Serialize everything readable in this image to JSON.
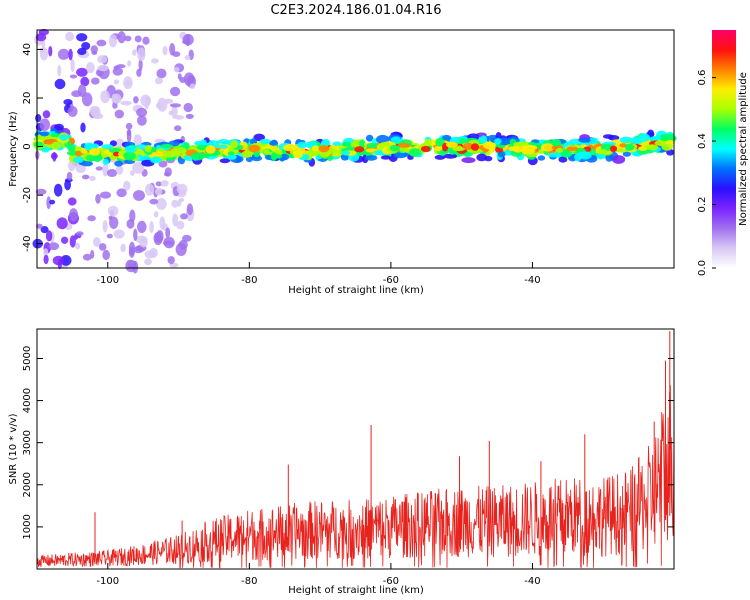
{
  "title": "C2E3.2024.186.01.04.R16",
  "colors": {
    "snr_line": "#e8231e",
    "colormap": [
      "#ffffff",
      "#d8c8f4",
      "#a070ee",
      "#7a24ff",
      "#2a10ff",
      "#0070ff",
      "#00ffff",
      "#00ff60",
      "#a8ff00",
      "#ffee00",
      "#ff8000",
      "#ff1010",
      "#ff0066"
    ]
  },
  "chart_data": [
    {
      "type": "heatmap",
      "xlabel": "Height of straight line (km)",
      "ylabel": "Frequency (Hz)",
      "xlim": [
        -110,
        -20
      ],
      "ylim": [
        -50,
        48
      ],
      "xticks": [
        -100,
        -80,
        -60,
        -40
      ],
      "yticks": [
        -40,
        -20,
        0,
        20,
        40
      ],
      "band_center_hz": [
        {
          "x": -105,
          "y": -3
        },
        {
          "x": -95,
          "y": -3
        },
        {
          "x": -80,
          "y": -1
        },
        {
          "x": -70,
          "y": -2
        },
        {
          "x": -60,
          "y": 0
        },
        {
          "x": -50,
          "y": 0
        },
        {
          "x": -40,
          "y": -1
        },
        {
          "x": -30,
          "y": -1
        },
        {
          "x": -21,
          "y": 2
        }
      ],
      "band_halfwidth_hz": 6,
      "colorbar": {
        "label": "Normalized spectral amplitude",
        "range": [
          0,
          0.75
        ],
        "ticks": [
          0.0,
          0.2,
          0.4,
          0.6
        ]
      }
    },
    {
      "type": "line",
      "xlabel": "Height of straight line (km)",
      "ylabel": "SNR (10 * v/v)",
      "xlim": [
        -110,
        -20
      ],
      "ylim": [
        0,
        5700
      ],
      "xticks": [
        -100,
        -80,
        -60,
        -40
      ],
      "yticks": [
        1000,
        2000,
        3000,
        4000,
        5000
      ],
      "envelope": [
        {
          "x": -110,
          "y": 300
        },
        {
          "x": -100,
          "y": 400
        },
        {
          "x": -95,
          "y": 550
        },
        {
          "x": -90,
          "y": 750
        },
        {
          "x": -85,
          "y": 1100
        },
        {
          "x": -80,
          "y": 1300
        },
        {
          "x": -75,
          "y": 1400
        },
        {
          "x": -70,
          "y": 1500
        },
        {
          "x": -65,
          "y": 1500
        },
        {
          "x": -60,
          "y": 1600
        },
        {
          "x": -55,
          "y": 1700
        },
        {
          "x": -50,
          "y": 1800
        },
        {
          "x": -45,
          "y": 1800
        },
        {
          "x": -40,
          "y": 1900
        },
        {
          "x": -35,
          "y": 2000
        },
        {
          "x": -30,
          "y": 2000
        },
        {
          "x": -26,
          "y": 2200
        },
        {
          "x": -23,
          "y": 2800
        },
        {
          "x": -21,
          "y": 4000
        },
        {
          "x": -20,
          "y": 4500
        }
      ],
      "spikes": [
        {
          "x": -101.8,
          "y": 1350
        },
        {
          "x": -89.5,
          "y": 1150
        },
        {
          "x": -74.5,
          "y": 2480
        },
        {
          "x": -62.8,
          "y": 3420
        },
        {
          "x": -50.3,
          "y": 2680
        },
        {
          "x": -46.1,
          "y": 3040
        },
        {
          "x": -38.8,
          "y": 2560
        },
        {
          "x": -32.6,
          "y": 3200
        },
        {
          "x": -22.8,
          "y": 3500
        },
        {
          "x": -21.2,
          "y": 4950
        },
        {
          "x": -20.6,
          "y": 5650
        }
      ]
    }
  ]
}
